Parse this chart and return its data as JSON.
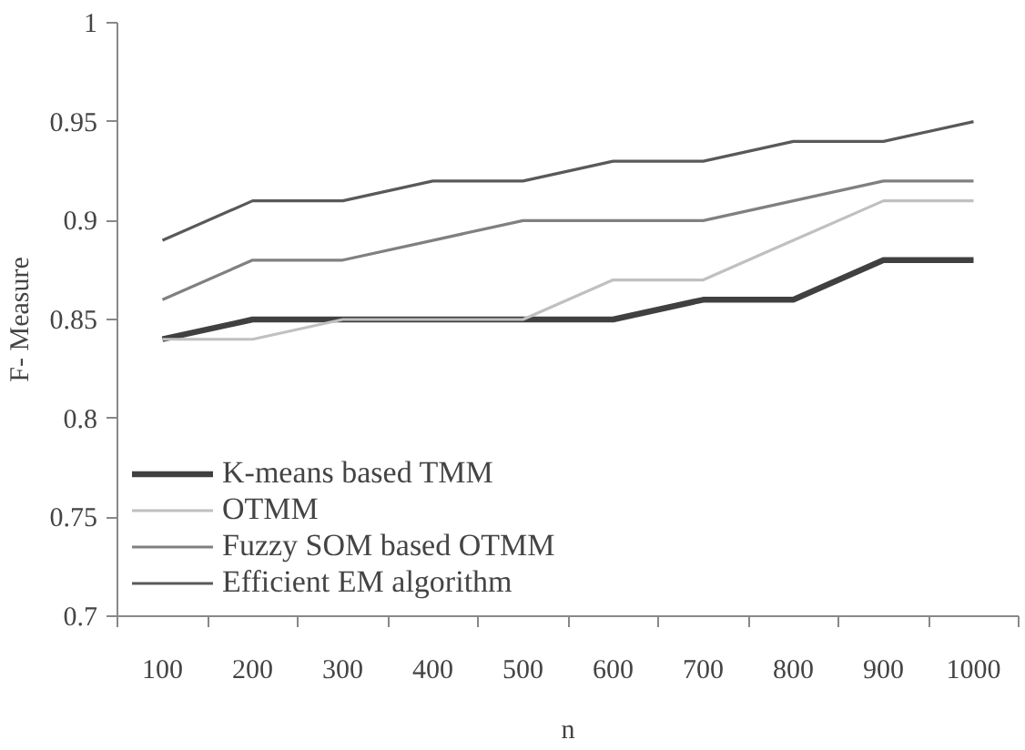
{
  "chart_data": {
    "type": "line",
    "xlabel": "n",
    "ylabel": "F- Measure",
    "categories": [
      "100",
      "200",
      "300",
      "400",
      "500",
      "600",
      "700",
      "800",
      "900",
      "1000"
    ],
    "series": [
      {
        "name": "K-means based TMM",
        "color": "#404040",
        "values": [
          0.84,
          0.85,
          0.85,
          0.85,
          0.85,
          0.85,
          0.86,
          0.86,
          0.88,
          0.88
        ]
      },
      {
        "name": "OTMM",
        "color": "#c0c0c0",
        "values": [
          0.84,
          0.84,
          0.85,
          0.85,
          0.85,
          0.87,
          0.87,
          0.89,
          0.91,
          0.91
        ]
      },
      {
        "name": "Fuzzy SOM based OTMM",
        "color": "#808080",
        "values": [
          0.86,
          0.88,
          0.88,
          0.89,
          0.9,
          0.9,
          0.9,
          0.91,
          0.92,
          0.92
        ]
      },
      {
        "name": "Efficient EM algorithm",
        "color": "#595959",
        "values": [
          0.89,
          0.91,
          0.91,
          0.92,
          0.92,
          0.93,
          0.93,
          0.94,
          0.94,
          0.95
        ]
      }
    ],
    "ylim": [
      0.7,
      1
    ],
    "yticks": [
      0.7,
      0.75,
      0.8,
      0.85,
      0.9,
      0.95,
      1
    ],
    "grid": false,
    "legend": "bottom left",
    "marker": "none",
    "line_style": "solid"
  }
}
